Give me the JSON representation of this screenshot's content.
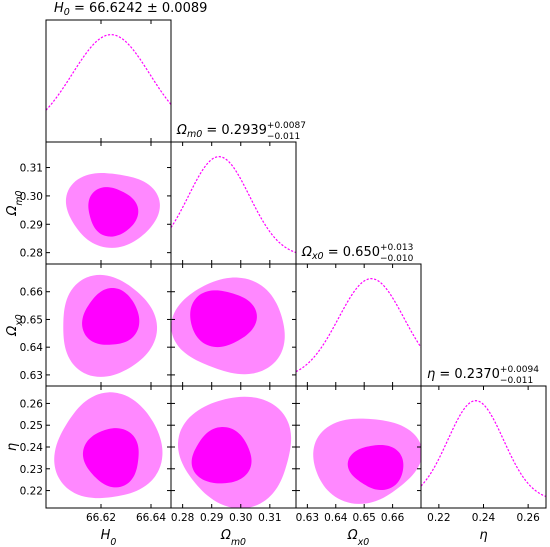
{
  "chart_data": {
    "type": "corner",
    "parameters": [
      {
        "id": "H0",
        "axis_label": "H_0",
        "title": {
          "main": "= 66.6242 ± 0.0089",
          "sup": "",
          "sub": ""
        },
        "range": [
          66.598,
          66.648
        ],
        "ticks": [
          66.62,
          66.64
        ],
        "tick_labels": [
          "66.62",
          "66.64"
        ],
        "peak": 66.624,
        "sigma": 0.0155
      },
      {
        "id": "Om",
        "axis_label": "Ω_m0",
        "title": {
          "main": "= 0.2939",
          "sup": "+0.0087",
          "sub": "−0.011"
        },
        "range": [
          0.276,
          0.319
        ],
        "ticks": [
          0.28,
          0.29,
          0.3,
          0.31
        ],
        "tick_labels": [
          "0.28",
          "0.29",
          "0.30",
          "0.31"
        ],
        "peak": 0.2925,
        "sigma": 0.0105
      },
      {
        "id": "Ox",
        "axis_label": "Ω_x0",
        "title": {
          "main": "= 0.650",
          "sup": "+0.013",
          "sub": "−0.010"
        },
        "range": [
          0.626,
          0.67
        ],
        "ticks": [
          0.63,
          0.64,
          0.65,
          0.66
        ],
        "tick_labels": [
          "0.63",
          "0.64",
          "0.65",
          "0.66"
        ],
        "peak": 0.6525,
        "sigma": 0.0115
      },
      {
        "id": "eta",
        "axis_label": "η",
        "title": {
          "main": "= 0.2370",
          "sup": "+0.0094",
          "sub": "−0.011"
        },
        "range": [
          0.212,
          0.268
        ],
        "ticks": [
          0.22,
          0.23,
          0.24,
          0.25,
          0.26
        ],
        "tick_labels": [
          "0.22",
          "0.23",
          "0.24",
          "0.25",
          "0.26"
        ],
        "x_ticks": [
          0.22,
          0.24,
          0.26
        ],
        "x_tick_labels": [
          "0.22",
          "0.24",
          "0.26"
        ],
        "peak": 0.2365,
        "sigma": 0.0125
      }
    ],
    "contours": [
      {
        "x": "H0",
        "y": "Om",
        "c2": [
          66.6245,
          0.2955
        ],
        "r2": [
          0.018,
          0.0135
        ],
        "c1": [
          66.6245,
          0.2945
        ],
        "r1": [
          0.01,
          0.0085
        ]
      },
      {
        "x": "H0",
        "y": "Ox",
        "c2": [
          66.6225,
          0.6475
        ],
        "r2": [
          0.0195,
          0.0175
        ],
        "c1": [
          66.624,
          0.6505
        ],
        "r1": [
          0.011,
          0.0105
        ]
      },
      {
        "x": "H0",
        "y": "eta",
        "c2": [
          66.623,
          0.2395
        ],
        "r2": [
          0.021,
          0.0245
        ],
        "c1": [
          66.6245,
          0.2355
        ],
        "r1": [
          0.0115,
          0.013
        ]
      },
      {
        "x": "Om",
        "y": "Ox",
        "c2": [
          0.2965,
          0.6475
        ],
        "r2": [
          0.019,
          0.0175
        ],
        "c1": [
          0.2935,
          0.6505
        ],
        "r1": [
          0.011,
          0.0105
        ]
      },
      {
        "x": "Om",
        "y": "eta",
        "c2": [
          0.2985,
          0.2385
        ],
        "r2": [
          0.02,
          0.0245
        ],
        "c1": [
          0.2935,
          0.2355
        ],
        "r1": [
          0.0105,
          0.0125
        ]
      },
      {
        "x": "Ox",
        "y": "eta",
        "c2": [
          0.6505,
          0.2345
        ],
        "r2": [
          0.0185,
          0.02
        ],
        "c1": [
          0.6545,
          0.231
        ],
        "r1": [
          0.0095,
          0.0105
        ]
      }
    ],
    "credible_levels": [
      "68%",
      "95%"
    ],
    "colors": {
      "inner": "#ff00ff",
      "outer": "#ff88ff",
      "line": "#ff00ff",
      "axis": "#000000"
    },
    "legend": "none",
    "grid": false
  }
}
